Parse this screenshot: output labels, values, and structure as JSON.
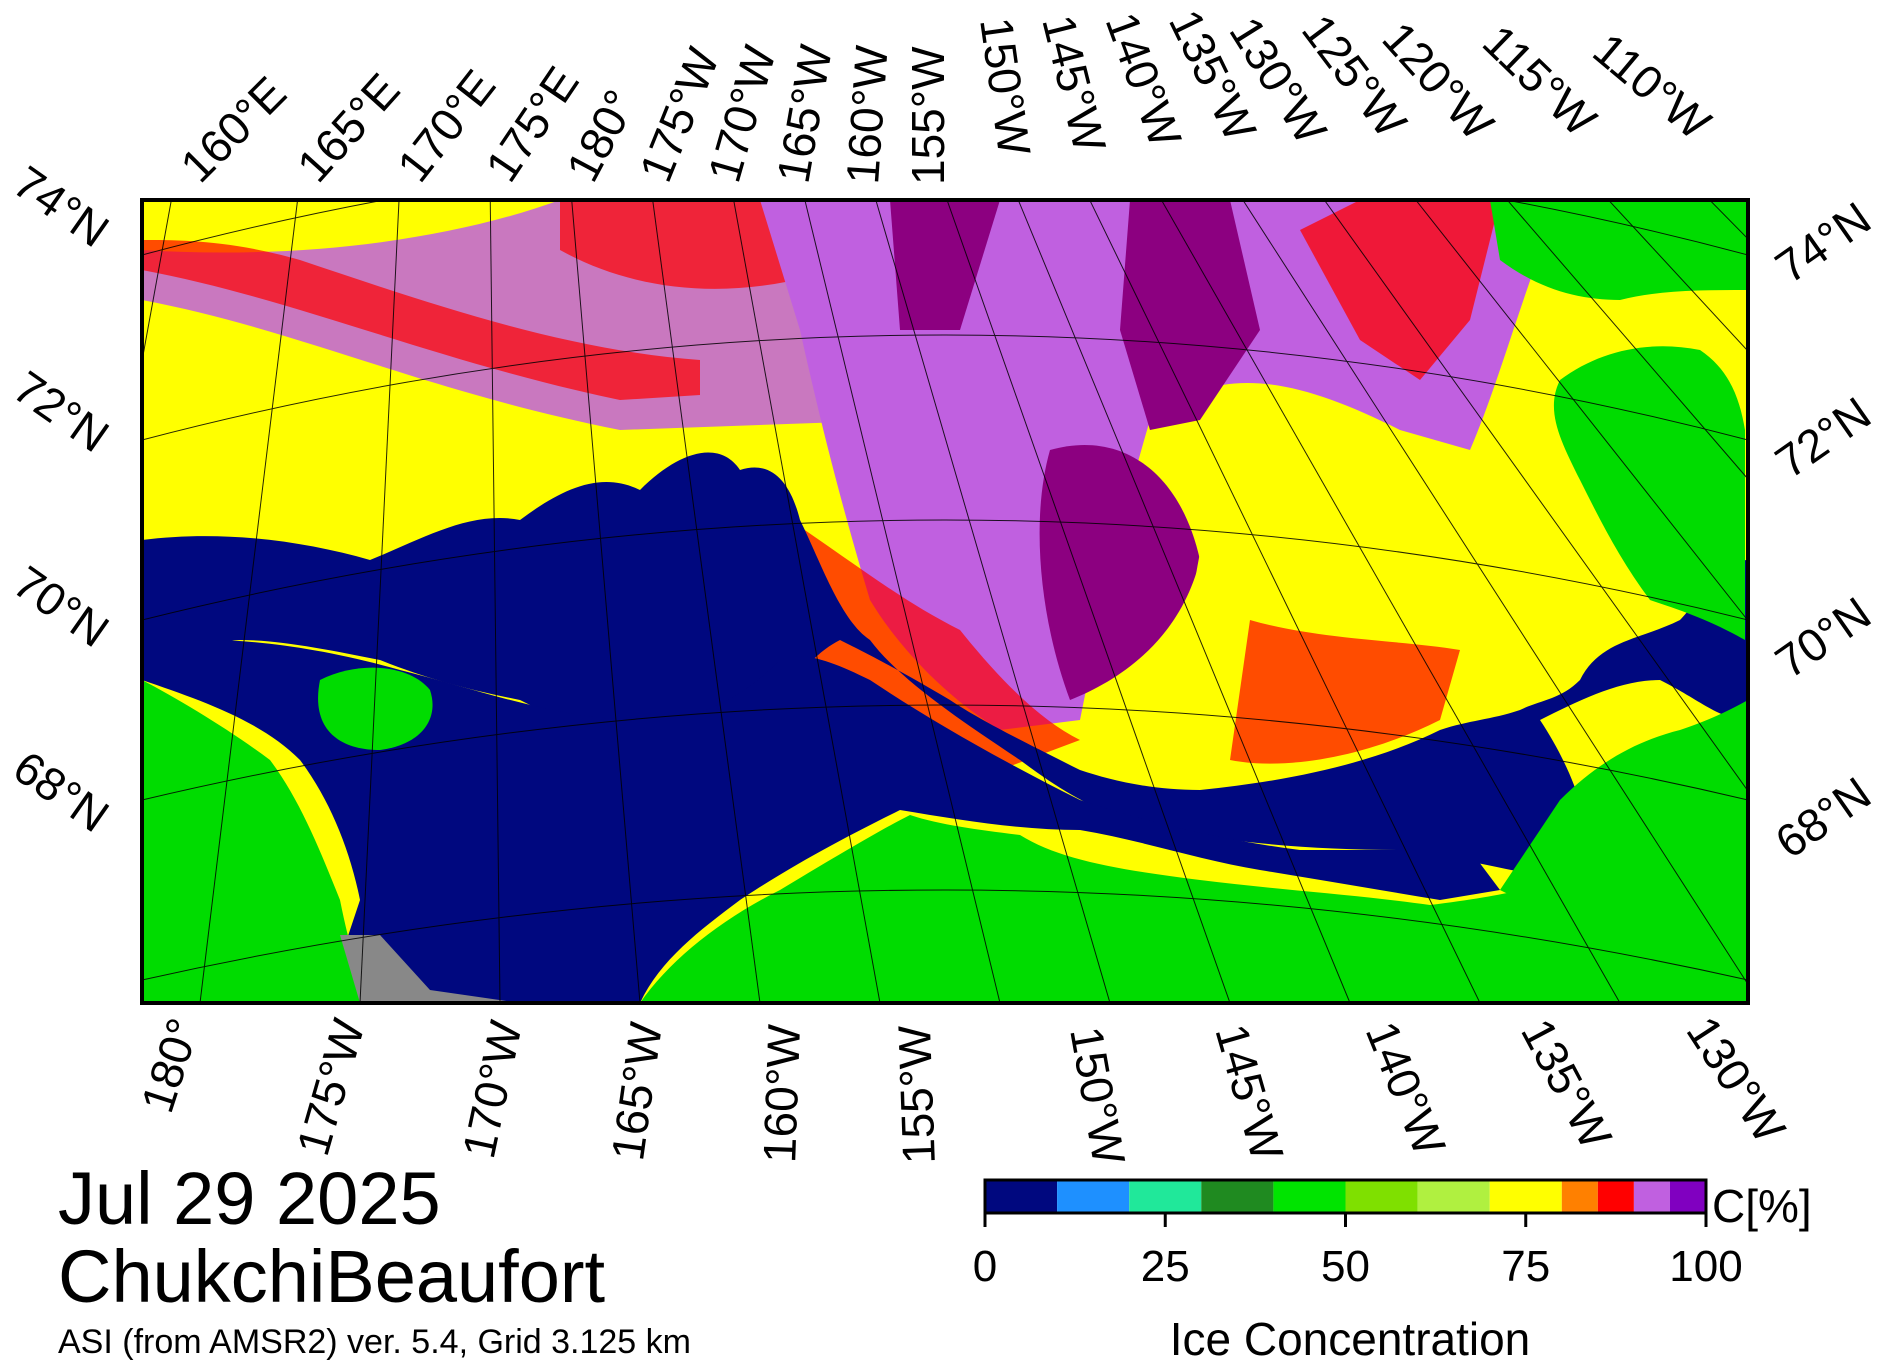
{
  "date": "Jul 29 2025",
  "region": "ChukchiBeaufort",
  "source_note": "ASI (from AMSR2) ver. 5.4,  Grid 3.125 km",
  "colorbar": {
    "label": "Ice Concentration",
    "unit": "C[%]",
    "min": 0,
    "max": 100,
    "ticks": [
      "0",
      "25",
      "50",
      "75",
      "100"
    ],
    "bins": [
      {
        "from": 0,
        "to": 10,
        "color": "#00087f"
      },
      {
        "from": 10,
        "to": 20,
        "color": "#1e90ff"
      },
      {
        "from": 20,
        "to": 30,
        "color": "#20e89a"
      },
      {
        "from": 30,
        "to": 40,
        "color": "#1f8a20"
      },
      {
        "from": 40,
        "to": 50,
        "color": "#00e400"
      },
      {
        "from": 50,
        "to": 60,
        "color": "#7fe000"
      },
      {
        "from": 60,
        "to": 70,
        "color": "#b0f040"
      },
      {
        "from": 70,
        "to": 80,
        "color": "#ffff00"
      },
      {
        "from": 80,
        "to": 85,
        "color": "#ff8000"
      },
      {
        "from": 85,
        "to": 90,
        "color": "#ff0000"
      },
      {
        "from": 90,
        "to": 95,
        "color": "#c060e0"
      },
      {
        "from": 95,
        "to": 100,
        "color": "#8000c0"
      }
    ]
  },
  "map_colors": {
    "land": "#00dc00",
    "open_water": "#00087f",
    "no_data": "#888888",
    "ice_mid": "#ffff00",
    "ice_high": "#c060e0",
    "ice_full": "#8c0080",
    "ice_edge": "#ff0000"
  },
  "axes": {
    "top_labels": [
      "160°E",
      "165°E",
      "170°E",
      "175°E",
      "180°",
      "175°W",
      "170°W",
      "165°W",
      "160°W",
      "155°W",
      "150°W",
      "145°W",
      "140°W",
      "135°W",
      "130°W",
      "125°W",
      "120°W",
      "115°W",
      "110°W"
    ],
    "left_labels": [
      "74°N",
      "72°N",
      "70°N",
      "68°N"
    ],
    "right_labels": [
      "74°N",
      "72°N",
      "70°N",
      "68°N"
    ],
    "bottom_labels": [
      "180°",
      "175°W",
      "170°W",
      "165°W",
      "160°W",
      "155°W",
      "150°W",
      "145°W",
      "140°W",
      "135°W",
      "130°W"
    ]
  }
}
